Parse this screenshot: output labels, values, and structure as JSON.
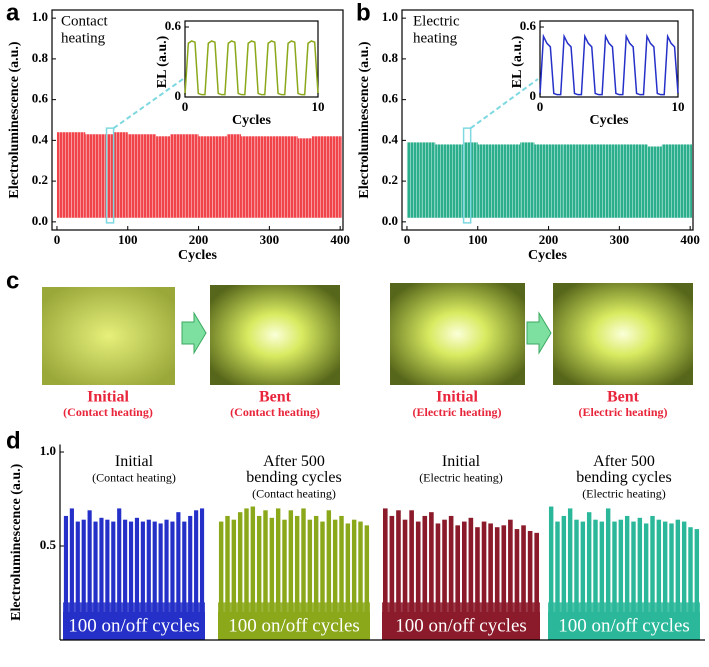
{
  "panels": [
    "a",
    "b",
    "c",
    "d"
  ],
  "chart_data": [
    {
      "type": "area",
      "color": "#f0444a",
      "ylabel": "Electroluminescence (a.u.)",
      "xlabel": "Cycles",
      "annotation": [
        "Contact",
        "heating"
      ],
      "x": [
        0,
        20,
        40,
        60,
        80,
        100,
        120,
        140,
        160,
        180,
        200,
        220,
        240,
        260,
        280,
        300,
        320,
        340,
        360,
        380,
        400
      ],
      "values": [
        0.44,
        0.44,
        0.43,
        0.43,
        0.44,
        0.43,
        0.43,
        0.42,
        0.43,
        0.43,
        0.42,
        0.42,
        0.43,
        0.42,
        0.42,
        0.42,
        0.42,
        0.41,
        0.42,
        0.42,
        0.42
      ],
      "min_values": [
        0.02,
        0.02,
        0.02,
        0.02,
        0.02,
        0.02,
        0.02,
        0.02,
        0.02,
        0.02,
        0.02,
        0.02,
        0.02,
        0.02,
        0.02,
        0.02,
        0.02,
        0.02,
        0.02,
        0.02,
        0.02
      ],
      "xlim": [
        -7,
        404
      ],
      "ylim": [
        -0.04,
        1.04
      ],
      "xticks": [
        0,
        100,
        200,
        300,
        400
      ],
      "yticks": [
        {
          "value": 0,
          "label": "0.0"
        },
        0.2,
        0.4,
        0.6,
        0.8,
        {
          "value": 1,
          "label": "1.0"
        }
      ],
      "inset": {
        "type": "line",
        "color": "#8aa81a",
        "xlabel": "Cycles",
        "ylabel": "EL (a.u.)",
        "x": [
          0,
          0.25,
          0.5,
          0.75,
          1,
          1.25,
          1.5,
          1.75,
          2,
          2.25,
          2.5,
          2.75,
          3,
          3.25,
          3.5,
          3.75,
          4,
          4.25,
          4.5,
          4.75,
          5,
          5.25,
          5.5,
          5.75,
          6,
          6.25,
          6.5,
          6.75,
          7,
          7.25,
          7.5,
          7.75,
          8,
          8.25,
          8.5,
          8.75,
          9,
          9.25,
          9.5,
          9.75,
          10
        ],
        "values": [
          0.02,
          0.46,
          0.48,
          0.47,
          0.03,
          0.02,
          0.02,
          0.46,
          0.48,
          0.47,
          0.03,
          0.02,
          0.02,
          0.46,
          0.48,
          0.47,
          0.03,
          0.02,
          0.02,
          0.46,
          0.48,
          0.47,
          0.03,
          0.02,
          0.02,
          0.46,
          0.48,
          0.47,
          0.03,
          0.02,
          0.02,
          0.46,
          0.48,
          0.47,
          0.03,
          0.02,
          0.02,
          0.46,
          0.48,
          0.47,
          0.03
        ],
        "xlim": [
          0,
          10
        ],
        "ylim": [
          0,
          0.6
        ],
        "xticks": [
          0,
          10
        ],
        "yticks": [
          0,
          0.6
        ]
      }
    },
    {
      "type": "area",
      "color": "#2aae8c",
      "ylabel": "Electroluminescence (a.u.)",
      "xlabel": "Cycles",
      "annotation": [
        "Electric",
        "heating"
      ],
      "x": [
        0,
        20,
        40,
        60,
        80,
        100,
        120,
        140,
        160,
        180,
        200,
        220,
        240,
        260,
        280,
        300,
        320,
        340,
        360,
        380,
        400
      ],
      "values": [
        0.39,
        0.39,
        0.38,
        0.38,
        0.39,
        0.38,
        0.38,
        0.38,
        0.39,
        0.38,
        0.38,
        0.38,
        0.38,
        0.38,
        0.38,
        0.38,
        0.38,
        0.37,
        0.38,
        0.38,
        0.38
      ],
      "min_values": [
        0.02,
        0.02,
        0.02,
        0.02,
        0.02,
        0.02,
        0.02,
        0.02,
        0.02,
        0.02,
        0.02,
        0.02,
        0.02,
        0.02,
        0.02,
        0.02,
        0.02,
        0.02,
        0.02,
        0.02,
        0.02
      ],
      "xlim": [
        -7,
        404
      ],
      "ylim": [
        -0.04,
        1.04
      ],
      "xticks": [
        0,
        100,
        200,
        300,
        400
      ],
      "yticks": [
        {
          "value": 0,
          "label": "0.0"
        },
        0.2,
        0.4,
        0.6,
        0.8,
        {
          "value": 1,
          "label": "1.0"
        }
      ],
      "inset": {
        "type": "line",
        "color": "#2530c8",
        "xlabel": "Cycles",
        "ylabel": "EL (a.u.)",
        "x": [
          0,
          0.25,
          0.5,
          0.75,
          1,
          1.25,
          1.5,
          1.75,
          2,
          2.25,
          2.5,
          2.75,
          3,
          3.25,
          3.5,
          3.75,
          4,
          4.25,
          4.5,
          4.75,
          5,
          5.25,
          5.5,
          5.75,
          6,
          6.25,
          6.5,
          6.75,
          7,
          7.25,
          7.5,
          7.75,
          8,
          8.25,
          8.5,
          8.75,
          9,
          9.25,
          9.5,
          9.75,
          10
        ],
        "values": [
          0.02,
          0.52,
          0.46,
          0.43,
          0.03,
          0.02,
          0.02,
          0.52,
          0.46,
          0.43,
          0.03,
          0.02,
          0.02,
          0.52,
          0.46,
          0.43,
          0.03,
          0.02,
          0.02,
          0.52,
          0.46,
          0.43,
          0.03,
          0.02,
          0.02,
          0.52,
          0.46,
          0.43,
          0.03,
          0.02,
          0.02,
          0.52,
          0.46,
          0.43,
          0.03,
          0.02,
          0.02,
          0.52,
          0.46,
          0.43,
          0.03
        ],
        "xlim": [
          0,
          10
        ],
        "ylim": [
          0,
          0.6
        ],
        "xticks": [
          0,
          10
        ],
        "yticks": [
          0,
          0.6
        ]
      }
    },
    {
      "type": "bar",
      "ylabel": "Electroluminescence (a.u.)",
      "ylim": [
        0,
        1.04
      ],
      "yticks": [
        0.5,
        {
          "value": 1,
          "label": "1.0"
        }
      ],
      "series": [
        {
          "color": "#2530c8",
          "label": [
            "Initial",
            "(Contact heating)"
          ],
          "caption": "100 on/off cycles",
          "values": [
            0.66,
            0.7,
            0.63,
            0.64,
            0.69,
            0.63,
            0.65,
            0.64,
            0.63,
            0.7,
            0.64,
            0.63,
            0.65,
            0.63,
            0.64,
            0.63,
            0.62,
            0.64,
            0.63,
            0.68,
            0.63,
            0.66,
            0.69,
            0.7
          ]
        },
        {
          "color": "#8aa81a",
          "label": [
            "After 500",
            "bending cycles",
            "(Contact heating)"
          ],
          "caption": "100 on/off cycles",
          "values": [
            0.63,
            0.66,
            0.64,
            0.68,
            0.7,
            0.71,
            0.66,
            0.69,
            0.65,
            0.7,
            0.64,
            0.69,
            0.66,
            0.7,
            0.64,
            0.66,
            0.63,
            0.69,
            0.64,
            0.66,
            0.62,
            0.64,
            0.63,
            0.61
          ]
        },
        {
          "color": "#8b1a2a",
          "label": [
            "Initial",
            "(Electric heating)"
          ],
          "caption": "100 on/off cycles",
          "values": [
            0.7,
            0.66,
            0.69,
            0.64,
            0.69,
            0.63,
            0.66,
            0.68,
            0.62,
            0.64,
            0.66,
            0.61,
            0.63,
            0.65,
            0.6,
            0.63,
            0.62,
            0.6,
            0.61,
            0.64,
            0.59,
            0.61,
            0.58,
            0.57
          ]
        },
        {
          "color": "#2bb89a",
          "label": [
            "After 500",
            "bending cycles",
            "(Electric heating)"
          ],
          "caption": "100 on/off cycles",
          "values": [
            0.71,
            0.63,
            0.66,
            0.7,
            0.64,
            0.63,
            0.68,
            0.64,
            0.63,
            0.7,
            0.63,
            0.64,
            0.66,
            0.63,
            0.65,
            0.62,
            0.66,
            0.64,
            0.63,
            0.62,
            0.64,
            0.63,
            0.6,
            0.59
          ]
        }
      ]
    }
  ],
  "photos": [
    {
      "caption": "Initial",
      "subcaption": "(Contact heating)"
    },
    {
      "caption": "Bent",
      "subcaption": "(Contact heating)"
    },
    {
      "caption": "Initial",
      "subcaption": "(Electric heating)"
    },
    {
      "caption": "Bent",
      "subcaption": "(Electric heating)"
    }
  ]
}
